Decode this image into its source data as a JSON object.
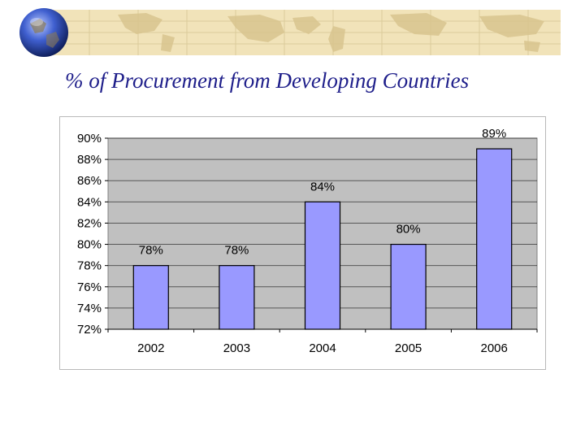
{
  "slide": {
    "title": "% of Procurement from Developing Countries"
  },
  "colors": {
    "banner": "#f1e3b9",
    "map_land": "#d9c58f",
    "title": "#1e1e8a",
    "plot_bg": "#c0c0c0",
    "bar": "#9999ff"
  },
  "chart_data": {
    "type": "bar",
    "title": "",
    "xlabel": "",
    "ylabel": "",
    "categories": [
      "2002",
      "2003",
      "2004",
      "2005",
      "2006"
    ],
    "values": [
      78,
      78,
      84,
      80,
      89
    ],
    "data_labels": [
      "78%",
      "78%",
      "84%",
      "80%",
      "89%"
    ],
    "ylim": [
      72,
      90
    ],
    "yticks": [
      72,
      74,
      76,
      78,
      80,
      82,
      84,
      86,
      88,
      90
    ],
    "ytick_labels": [
      "72%",
      "74%",
      "76%",
      "78%",
      "80%",
      "82%",
      "84%",
      "86%",
      "88%",
      "90%"
    ],
    "grid": true,
    "legend": "none"
  }
}
